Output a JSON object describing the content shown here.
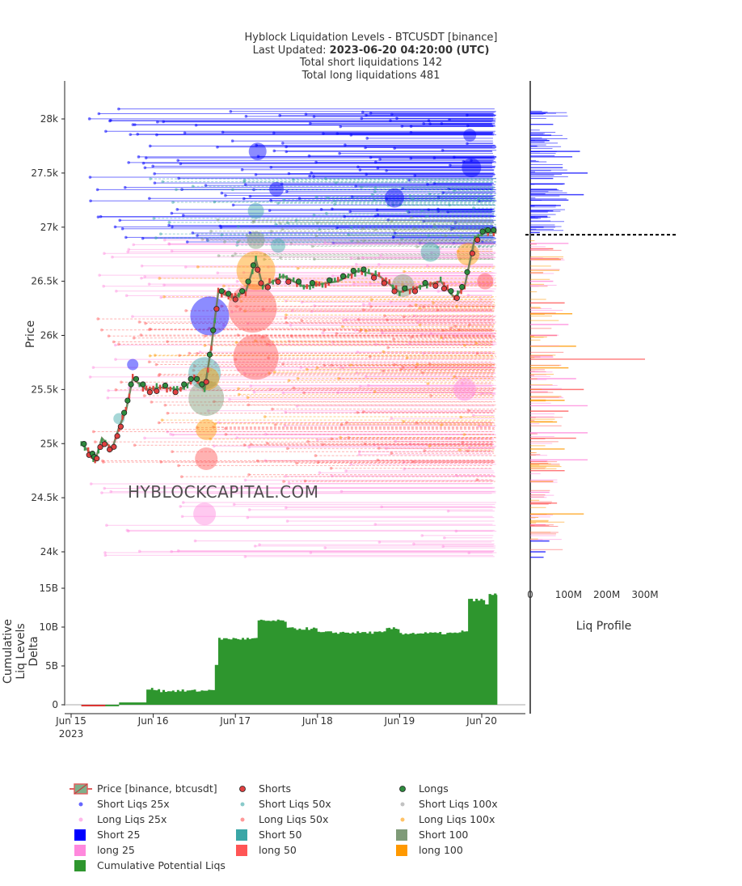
{
  "header": {
    "title_line1": "Hyblock Liquidation Levels - BTCUSDT [binance]",
    "updated_label": "Last Updated: ",
    "updated_value": "2023-06-20 04:20:00 (UTC)",
    "short_total": "Total short liquidations 142",
    "long_total": "Total long liquidations 481"
  },
  "watermark": "HYBLOCKCAPITAL.COM",
  "colors": {
    "short25": "#0000ff",
    "short50": "#3aa6a6",
    "short100": "#7f9b78",
    "long25": "#ff88dd",
    "long50": "#ff5555",
    "long100": "#ff9900",
    "cumulative": "#2e962e",
    "cumulative_neg": "#e03030",
    "candle_up": "#3a9a4e",
    "candle_down": "#e0463e",
    "shorts_marker": "#e04040",
    "longs_marker": "#2e8b3e"
  },
  "chart_data": [
    {
      "type": "line",
      "name": "Price [binance, btcusdt]",
      "ylabel": "Price",
      "x_start": "2023-06-15 00:00",
      "x_end": "2023-06-20 04:20",
      "ylim": [
        23800,
        28300
      ],
      "y_ticks": [
        24000,
        24500,
        25000,
        25500,
        26000,
        26500,
        27000,
        27500,
        28000
      ],
      "y_tick_labels": [
        "24k",
        "24.5k",
        "25k",
        "25.5k",
        "26k",
        "26.5k",
        "27k",
        "27.5k",
        "28k"
      ],
      "price_path": [
        [
          "2023-06-15 03:00",
          25000
        ],
        [
          "2023-06-15 06:00",
          24900
        ],
        [
          "2023-06-15 07:00",
          24840
        ],
        [
          "2023-06-15 09:00",
          25050
        ],
        [
          "2023-06-15 12:00",
          24950
        ],
        [
          "2023-06-15 14:00",
          25150
        ],
        [
          "2023-06-15 16:00",
          25300
        ],
        [
          "2023-06-15 18:00",
          25600
        ],
        [
          "2023-06-15 22:00",
          25500
        ],
        [
          "2023-06-16 02:00",
          25520
        ],
        [
          "2023-06-16 08:00",
          25500
        ],
        [
          "2023-06-16 12:00",
          25600
        ],
        [
          "2023-06-16 15:00",
          25500
        ],
        [
          "2023-06-16 17:00",
          25900
        ],
        [
          "2023-06-16 19:00",
          26400
        ],
        [
          "2023-06-16 23:00",
          26350
        ],
        [
          "2023-06-17 03:00",
          26400
        ],
        [
          "2023-06-17 06:00",
          26700
        ],
        [
          "2023-06-17 08:00",
          26450
        ],
        [
          "2023-06-17 14:00",
          26550
        ],
        [
          "2023-06-17 20:00",
          26450
        ],
        [
          "2023-06-18 06:00",
          26500
        ],
        [
          "2023-06-18 12:00",
          26600
        ],
        [
          "2023-06-18 18:00",
          26550
        ],
        [
          "2023-06-19 00:00",
          26400
        ],
        [
          "2023-06-19 06:00",
          26450
        ],
        [
          "2023-06-19 12:00",
          26500
        ],
        [
          "2023-06-19 16:00",
          26350
        ],
        [
          "2023-06-19 19:00",
          26450
        ],
        [
          "2023-06-19 22:00",
          26900
        ],
        [
          "2023-06-20 01:00",
          26950
        ],
        [
          "2023-06-20 04:20",
          26950
        ]
      ],
      "legend": [
        "Price [binance, btcusdt]",
        "Shorts",
        "Longs",
        "Short Liqs 25x",
        "Short Liqs 50x",
        "Short Liqs 100x",
        "Long Liqs 25x",
        "Long Liqs 50x",
        "Long Liqs 100x",
        "Short 25",
        "Short 50",
        "Short 100",
        "long 25",
        "long 50",
        "long 100",
        "Cumulative Potential Liqs"
      ]
    },
    {
      "type": "area",
      "name": "Cumulative Potential Liqs",
      "ylabel": "Cumulative Liq Levels Delta",
      "ylabel_lines": [
        "Cumulative",
        "Liq Levels",
        "Delta"
      ],
      "ylim": [
        -1,
        15
      ],
      "y_ticks": [
        0,
        5,
        10,
        15
      ],
      "y_tick_labels": [
        "0",
        "5B",
        "10B",
        "15B"
      ],
      "x_ticks": [
        "2023-06-15",
        "2023-06-16",
        "2023-06-17",
        "2023-06-18",
        "2023-06-19",
        "2023-06-20"
      ],
      "x_tick_labels": [
        "Jun 15",
        "Jun 16",
        "Jun 17",
        "Jun 18",
        "Jun 19",
        "Jun 20"
      ],
      "x_tick_year": "2023",
      "series_values_B": [
        [
          "2023-06-15 03:00",
          -0.2
        ],
        [
          "2023-06-15 10:00",
          -0.2
        ],
        [
          "2023-06-15 14:00",
          0.3
        ],
        [
          "2023-06-15 22:00",
          2.0
        ],
        [
          "2023-06-16 02:00",
          1.8
        ],
        [
          "2023-06-16 16:00",
          2.0
        ],
        [
          "2023-06-16 18:00",
          5.0
        ],
        [
          "2023-06-16 19:00",
          8.5
        ],
        [
          "2023-06-17 06:00",
          8.5
        ],
        [
          "2023-06-17 06:30",
          10.8
        ],
        [
          "2023-06-17 15:00",
          9.8
        ],
        [
          "2023-06-18 00:00",
          9.3
        ],
        [
          "2023-06-18 20:00",
          9.8
        ],
        [
          "2023-06-19 00:00",
          9.2
        ],
        [
          "2023-06-19 18:00",
          9.5
        ],
        [
          "2023-06-19 20:00",
          13.5
        ],
        [
          "2023-06-20 01:00",
          12.8
        ],
        [
          "2023-06-20 02:00",
          14.2
        ],
        [
          "2023-06-20 04:20",
          14.2
        ]
      ]
    },
    {
      "type": "bar",
      "name": "Liq Profile",
      "orientation": "horizontal",
      "x_ticks": [
        0,
        100,
        200,
        300
      ],
      "x_tick_labels": [
        "0",
        "100M",
        "200M",
        "300M"
      ],
      "current_price": 26930,
      "short_bars": [
        [
          27700,
          130
        ],
        [
          27650,
          110
        ],
        [
          27500,
          150
        ],
        [
          27400,
          90
        ],
        [
          27350,
          70
        ],
        [
          27300,
          140
        ],
        [
          27250,
          100
        ],
        [
          27200,
          80
        ],
        [
          27950,
          60
        ],
        [
          28050,
          40
        ],
        [
          27850,
          55
        ],
        [
          27100,
          45
        ],
        [
          27000,
          35
        ],
        [
          26950,
          25
        ],
        [
          27550,
          85
        ],
        [
          27450,
          60
        ],
        [
          27800,
          50
        ],
        [
          27150,
          60
        ],
        [
          24000,
          40
        ],
        [
          24100,
          50
        ],
        [
          23950,
          35
        ]
      ],
      "long_bars": [
        [
          26850,
          100
        ],
        [
          26800,
          60
        ],
        [
          26700,
          80
        ],
        [
          26500,
          60
        ],
        [
          26300,
          90
        ],
        [
          26200,
          110
        ],
        [
          26100,
          100
        ],
        [
          26000,
          70
        ],
        [
          25900,
          120
        ],
        [
          25800,
          60
        ],
        [
          25780,
          300
        ],
        [
          25700,
          100
        ],
        [
          25600,
          120
        ],
        [
          25500,
          140
        ],
        [
          25400,
          90
        ],
        [
          25350,
          150
        ],
        [
          25300,
          100
        ],
        [
          25200,
          70
        ],
        [
          25100,
          150
        ],
        [
          25050,
          120
        ],
        [
          24950,
          90
        ],
        [
          24850,
          150
        ],
        [
          24750,
          90
        ],
        [
          24650,
          60
        ],
        [
          24550,
          50
        ],
        [
          24450,
          70
        ],
        [
          24350,
          140
        ],
        [
          24250,
          40
        ]
      ]
    }
  ]
}
